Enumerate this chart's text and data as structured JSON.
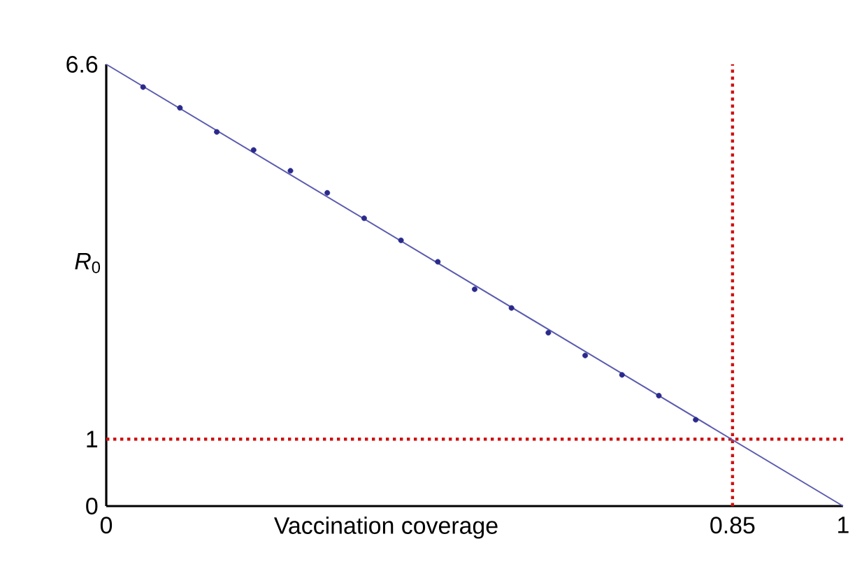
{
  "chart_data": {
    "type": "scatter",
    "xlabel": "Vaccination coverage",
    "ylabel": "*R*$_{0}$",
    "xlim": [
      0,
      1
    ],
    "ylim": [
      0,
      6.6
    ],
    "xticks": [
      0,
      0.85,
      1
    ],
    "yticks": [
      0,
      1,
      6.6
    ],
    "series": [
      {
        "type": "line",
        "color": "#5b5bb0",
        "marker": "none",
        "line_style": "solid",
        "x": [
          0,
          1
        ],
        "values": [
          6.6,
          0
        ]
      },
      {
        "color": "#2a2a8c",
        "marker": "circle",
        "x": [
          0.05,
          0.1,
          0.15,
          0.2,
          0.25,
          0.3,
          0.35,
          0.4,
          0.45,
          0.5,
          0.55,
          0.6,
          0.65,
          0.7,
          0.75,
          0.8
        ],
        "values": [
          6.26,
          5.95,
          5.59,
          5.32,
          5.01,
          4.68,
          4.3,
          3.97,
          3.65,
          3.24,
          2.96,
          2.59,
          2.25,
          1.96,
          1.65,
          1.29
        ]
      }
    ],
    "ref_lines": [
      {
        "axis": "y",
        "value": 1,
        "color": "#d01010",
        "line_style": "dotted"
      },
      {
        "axis": "x",
        "value": 0.85,
        "color": "#d01010",
        "line_style": "dotted"
      }
    ]
  }
}
